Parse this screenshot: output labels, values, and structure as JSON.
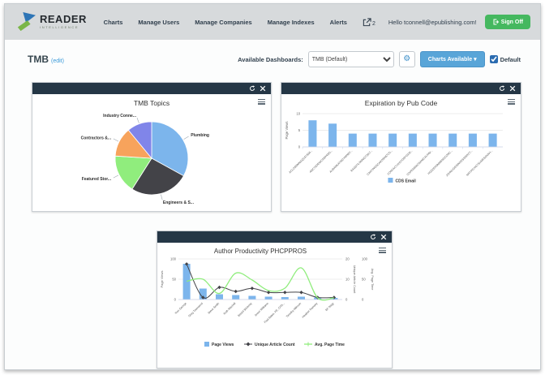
{
  "navbar": {
    "logo": {
      "title": "READER",
      "subtitle": "INTELLIGENCE"
    },
    "items": [
      {
        "label": "Charts"
      },
      {
        "label": "Manage Users"
      },
      {
        "label": "Manage Companies"
      },
      {
        "label": "Manage Indexes"
      },
      {
        "label": "Alerts"
      }
    ],
    "export_count": "2",
    "greeting": "Hello tconnell@epublishing.com!",
    "sign_off_label": "Sign Off"
  },
  "toolbar": {
    "title": "TMB",
    "edit_link": "(edit)",
    "available_dashboards_label": "Available Dashboards:",
    "dashboard_selected": "TMB (Default)",
    "charts_available_label": "Charts Available",
    "default_label": "Default",
    "default_checked": true
  },
  "colors": {
    "navbar_bg": "#d7dadc",
    "panel_header": "#253746",
    "sign_off_green": "#45b85f",
    "charts_button_blue": "#59a5d8",
    "chart_blue": "#7cb5ec",
    "chart_dark": "#434348",
    "chart_green": "#90ed7d",
    "chart_orange": "#f7a35c",
    "chart_purple": "#8085e9"
  },
  "chart_data": [
    {
      "type": "pie",
      "title": "TMB Topics",
      "slices": [
        {
          "label": "Plumbing",
          "value": 33,
          "color": "#7cb5ec"
        },
        {
          "label": "Engineers & S...",
          "value": 26,
          "color": "#434348"
        },
        {
          "label": "Featured Stor...",
          "value": 17,
          "color": "#90ed7d"
        },
        {
          "label": "Contractors &...",
          "value": 13,
          "color": "#f7a35c"
        },
        {
          "label": "Industry Conne...",
          "value": 11,
          "color": "#8085e9"
        }
      ]
    },
    {
      "type": "bar",
      "title": "Expiration by Pub Code",
      "ylabel": "Page Views",
      "ylim": [
        0,
        10
      ],
      "yticks": [
        0,
        5,
        10
      ],
      "categories": [
        "ACLDSNMNGQ1STSMI...",
        "ANCTADENICASPANO...",
        "AUBANKATINCHMNST...",
        "BAGSTILNMNGTQILT...",
        "CARTINGSCARDSINCCO...",
        "CONTACTJVOTDSFOXW...",
        "COPESBNICNANICALPAV...",
        "HOZZERSNMBNGCONC...",
        "JOHNUGEISINVESSISRCT...",
        "NRTPICHGTSUMESGVAH..."
      ],
      "values": [
        8,
        7,
        4,
        4,
        4,
        4,
        4,
        4,
        4,
        4
      ],
      "legend": [
        "CDS Email"
      ],
      "color": "#7cb5ec"
    },
    {
      "type": "combo",
      "title": "Author Productivity PHCPPROS",
      "categories": [
        "Ron George",
        "Greg Townsend",
        "Steve Smith",
        "Ruth Mitchell",
        "Bristol Stickney",
        "Anton Williams",
        "Paul Bales, PE, CPD...",
        "Timothy Allinson",
        "Heather Ramsey",
        "BF Nagy"
      ],
      "axes": {
        "left": {
          "label": "Page Views",
          "ticks": [
            0,
            50,
            100
          ],
          "max": 100
        },
        "right1": {
          "label": "Unique Article Count",
          "ticks": [
            0,
            10,
            20
          ],
          "max": 20
        },
        "right2": {
          "label": "Avg. Page Time",
          "ticks": [
            0,
            50,
            100
          ],
          "max": 100
        }
      },
      "series": [
        {
          "name": "Page Views",
          "type": "bar",
          "axis": "left",
          "color": "#7cb5ec",
          "values": [
            88,
            27,
            13,
            11,
            9,
            7,
            6,
            7,
            5,
            4
          ]
        },
        {
          "name": "Unique Article Count",
          "type": "line",
          "axis": "right1",
          "color": "#434348",
          "marker": "diamond",
          "values": [
            17.5,
            1,
            6,
            4,
            5.5,
            3.5,
            3.5,
            3.5,
            1,
            1
          ]
        },
        {
          "name": "Avg. Page Time",
          "type": "line",
          "axis": "right2",
          "color": "#90ed7d",
          "smooth": true,
          "values": [
            45,
            50,
            15,
            65,
            48,
            22,
            28,
            78,
            4,
            4
          ]
        }
      ],
      "legend_position": "bottom"
    }
  ]
}
